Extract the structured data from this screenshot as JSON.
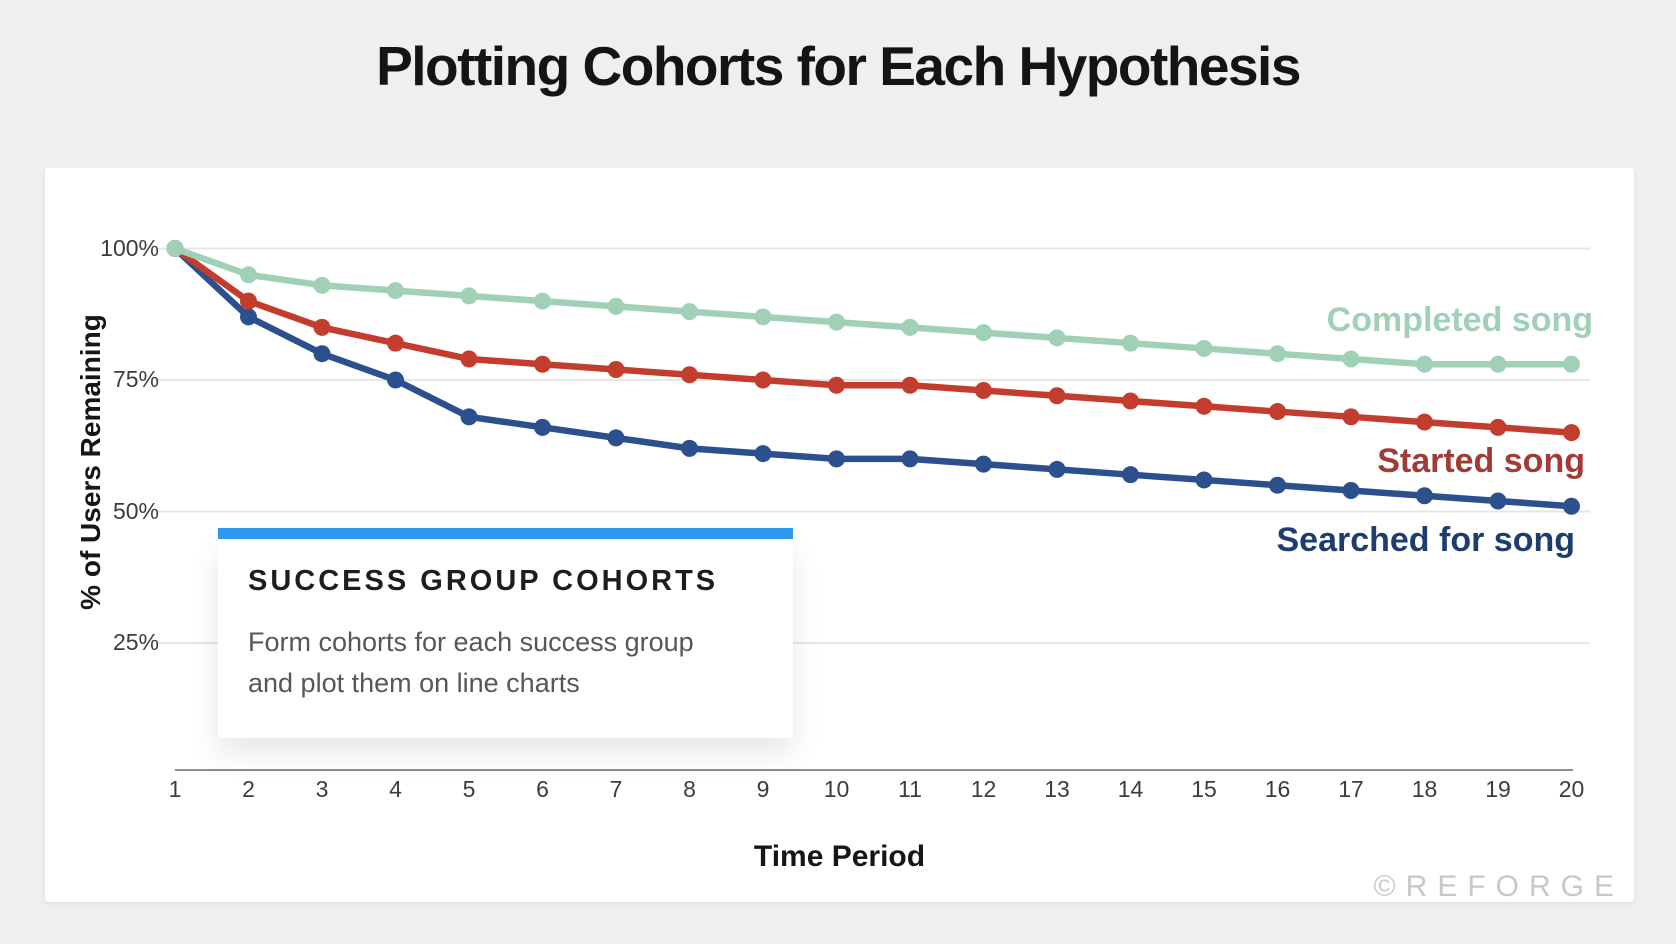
{
  "page": {
    "title": "Plotting Cohorts for Each Hypothesis",
    "watermark": "©REFORGE"
  },
  "callout": {
    "title": "SUCCESS GROUP COHORTS",
    "body_line1": "Form cohorts for each success group",
    "body_line2": "and plot them on line charts",
    "accent_color": "#2f9bee"
  },
  "chart_data": {
    "type": "line",
    "title": "Plotting Cohorts for Each Hypothesis",
    "xlabel": "Time Period",
    "ylabel": "% of Users Remaining",
    "x": [
      1,
      2,
      3,
      4,
      5,
      6,
      7,
      8,
      9,
      10,
      11,
      12,
      13,
      14,
      15,
      16,
      17,
      18,
      19,
      20
    ],
    "x_tick_labels": [
      "1",
      "2",
      "3",
      "4",
      "5",
      "6",
      "7",
      "8",
      "9",
      "10",
      "11",
      "12",
      "13",
      "14",
      "15",
      "16",
      "17",
      "18",
      "19",
      "20"
    ],
    "y_ticks": [
      {
        "label": "100%",
        "value": 100
      },
      {
        "label": "75%",
        "value": 75
      },
      {
        "label": "50%",
        "value": 50
      },
      {
        "label": "25%",
        "value": 25
      }
    ],
    "ylim": [
      0,
      100
    ],
    "grid": true,
    "legend_position": "inline-right",
    "series": [
      {
        "name": "Completed song",
        "color": "#a0d1b7",
        "label_color": "#a0d1b7",
        "values": [
          100,
          95,
          93,
          92,
          91,
          90,
          89,
          88,
          87,
          86,
          85,
          84,
          83,
          82,
          81,
          80,
          79,
          78,
          78,
          78
        ]
      },
      {
        "name": "Started song",
        "color": "#c33d2e",
        "label_color": "#a23a35",
        "values": [
          100,
          90,
          85,
          82,
          79,
          78,
          77,
          76,
          75,
          74,
          74,
          73,
          72,
          71,
          70,
          69,
          68,
          67,
          66,
          65
        ]
      },
      {
        "name": "Searched for song",
        "color": "#2c4f8e",
        "label_color": "#1e3d6e",
        "values": [
          100,
          87,
          80,
          75,
          68,
          66,
          64,
          62,
          61,
          60,
          60,
          59,
          58,
          57,
          56,
          55,
          54,
          53,
          52,
          51
        ]
      }
    ]
  }
}
